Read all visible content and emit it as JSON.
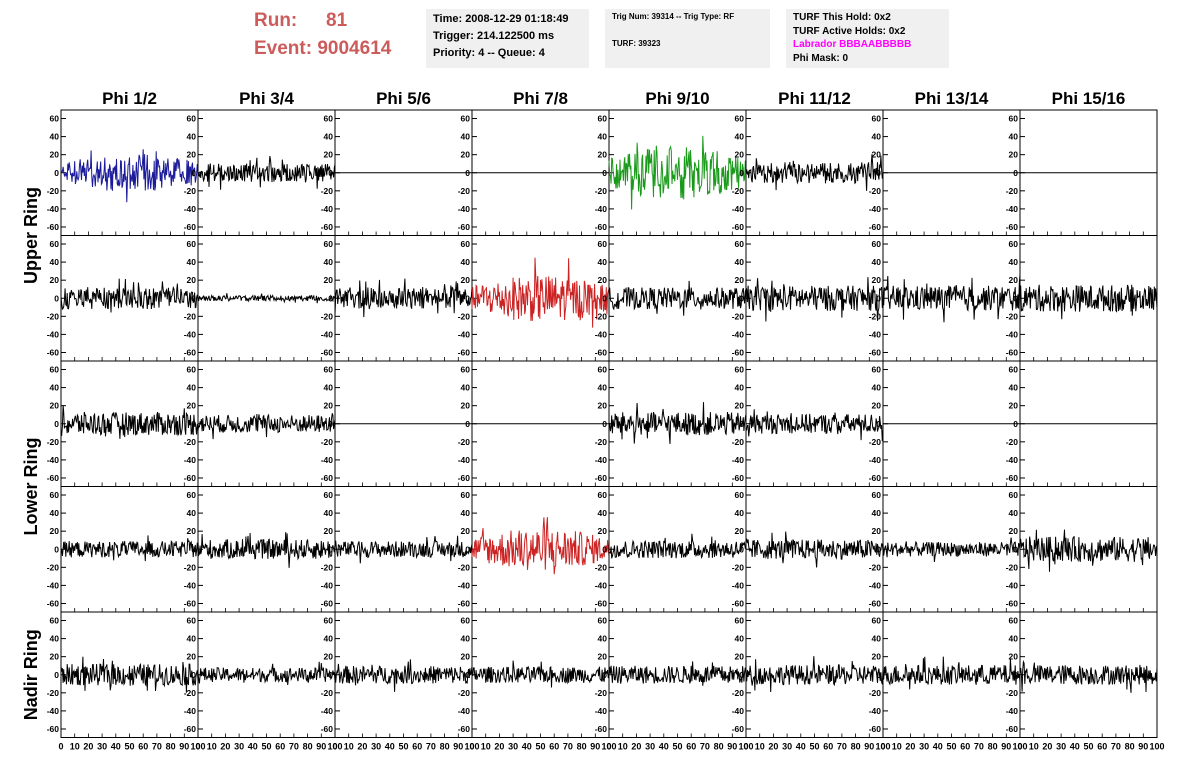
{
  "header": {
    "run_label": "Run:",
    "run_value": "81",
    "event_label": "Event:",
    "event_value": "9004614",
    "time": "Time: 2008-12-29 01:18:49",
    "trigger": "Trigger: 214.122500 ms",
    "priority_queue": "Priority: 4 -- Queue: 4",
    "trig_num_type": "Trig Num: 39314 -- Trig Type: RF",
    "turf": "TURF: 39323",
    "turf_this_hold": "TURF This Hold: 0x2",
    "turf_active_holds": "TURF Active Holds: 0x2",
    "labrador": "Labrador BBBAABBBBB",
    "phi_mask": "Phi Mask: 0"
  },
  "colors": {
    "header_red": "#cc5c5c",
    "labrador_magenta": "#ff00ff",
    "info_box_bg": "#f0f0f0",
    "trace_default": "#000000",
    "trace_blue": "#1a1a9a",
    "trace_green": "#1a9a1a",
    "trace_red": "#cc2222"
  },
  "chart_data": {
    "type": "line",
    "description_of_grid": "4x8 grid of waveform panels plus nadir row",
    "columns": [
      "Phi 1/2",
      "Phi 3/4",
      "Phi 5/6",
      "Phi 7/8",
      "Phi 9/10",
      "Phi 11/12",
      "Phi 13/14",
      "Phi 15/16"
    ],
    "ring_labels": [
      "Upper Ring",
      "Lower Ring",
      "Nadir Ring"
    ],
    "y_ticks": [
      60,
      40,
      20,
      0,
      -20,
      -40,
      -60
    ],
    "ylim": [
      -65,
      65
    ],
    "x_ticks": [
      0,
      10,
      20,
      30,
      40,
      50,
      60,
      70,
      80,
      90,
      100
    ],
    "xlim": [
      0,
      100
    ],
    "x_axis_label_text": "0 10 20 30 40 50 60 70 80 90 100",
    "rows": [
      {
        "amplitudes": [
          18,
          10,
          0,
          0,
          25,
          12,
          0,
          0
        ],
        "colors": [
          "trace_blue",
          "trace_default",
          "trace_default",
          "trace_default",
          "trace_green",
          "trace_default",
          "trace_default",
          "trace_default"
        ]
      },
      {
        "amplitudes": [
          12,
          3,
          12,
          22,
          12,
          14,
          14,
          15
        ],
        "colors": [
          "trace_default",
          "trace_default",
          "trace_default",
          "trace_red",
          "trace_default",
          "trace_default",
          "trace_default",
          "trace_default"
        ]
      },
      {
        "amplitudes": [
          13,
          10,
          0,
          0,
          13,
          11,
          0,
          0
        ],
        "colors": [
          "trace_default",
          "trace_default",
          "trace_default",
          "trace_default",
          "trace_default",
          "trace_default",
          "trace_default",
          "trace_default"
        ]
      },
      {
        "amplitudes": [
          9,
          11,
          9,
          20,
          10,
          11,
          8,
          14
        ],
        "colors": [
          "trace_default",
          "trace_default",
          "trace_default",
          "trace_red",
          "trace_default",
          "trace_default",
          "trace_default",
          "trace_default"
        ]
      },
      {
        "amplitudes": [
          12,
          8,
          10,
          9,
          10,
          11,
          11,
          11
        ],
        "colors": [
          "trace_default",
          "trace_default",
          "trace_default",
          "trace_default",
          "trace_default",
          "trace_default",
          "trace_default",
          "trace_default"
        ]
      }
    ]
  }
}
